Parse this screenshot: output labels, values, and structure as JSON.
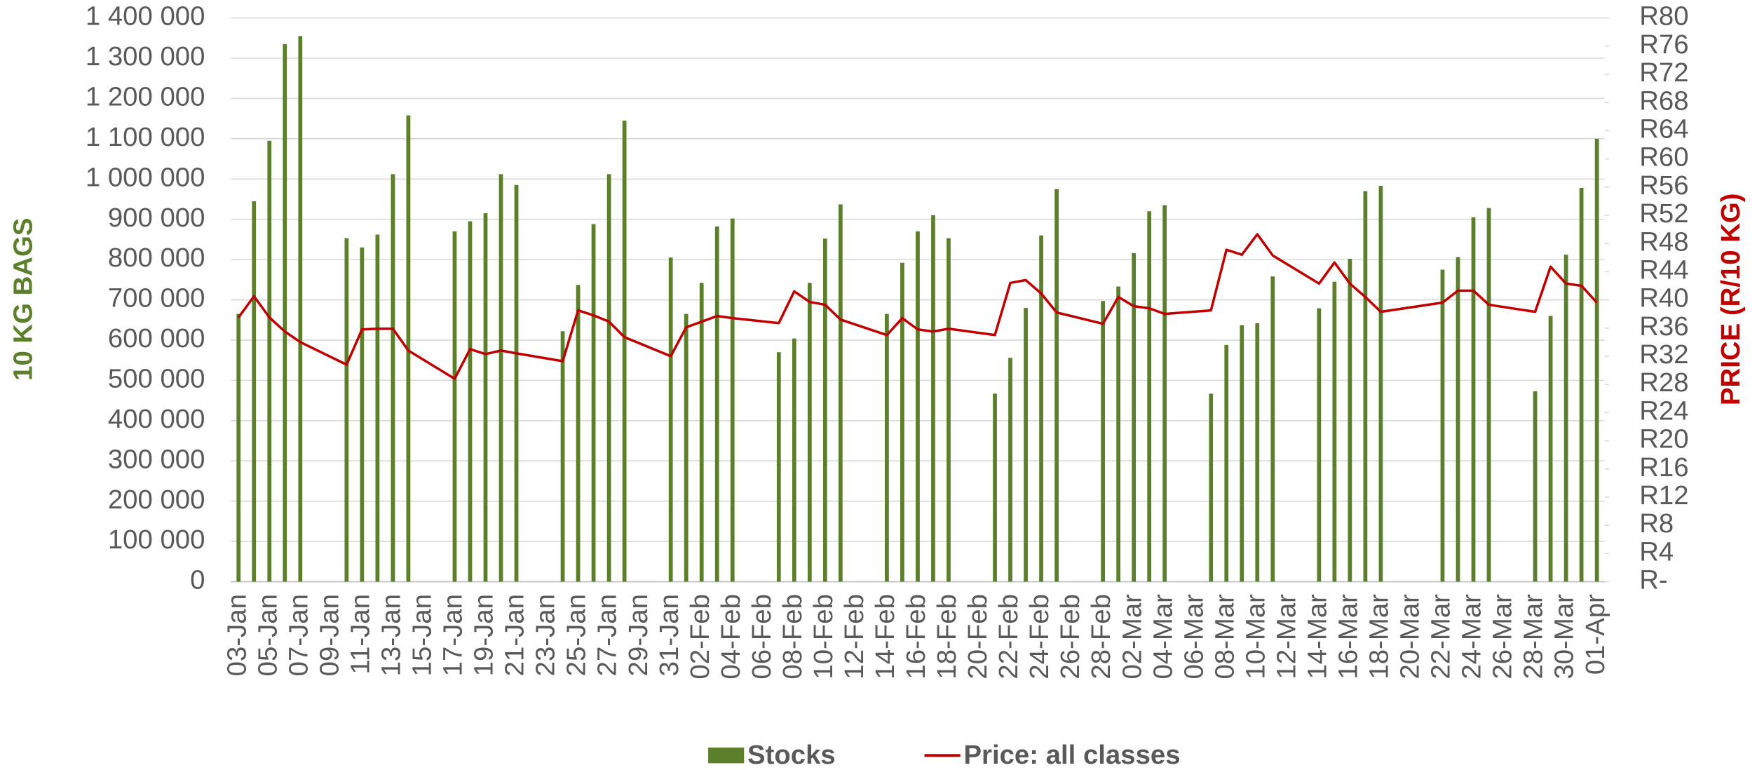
{
  "chart_data": {
    "type": "bar-line",
    "categories": [
      "03-Jan",
      null,
      "05-Jan",
      null,
      "07-Jan",
      null,
      "09-Jan",
      null,
      "11-Jan",
      null,
      "13-Jan",
      null,
      "15-Jan",
      null,
      "17-Jan",
      null,
      "19-Jan",
      null,
      "21-Jan",
      null,
      "23-Jan",
      null,
      "25-Jan",
      null,
      "27-Jan",
      null,
      "29-Jan",
      null,
      "31-Jan",
      null,
      "02-Feb",
      null,
      "04-Feb",
      null,
      "06-Feb",
      null,
      "08-Feb",
      null,
      "10-Feb",
      null,
      "12-Feb",
      null,
      "14-Feb",
      null,
      "16-Feb",
      null,
      "18-Feb",
      null,
      "20-Feb",
      null,
      "22-Feb",
      null,
      "24-Feb",
      null,
      "26-Feb",
      null,
      "28-Feb",
      null,
      "02-Mar",
      null,
      "04-Mar",
      null,
      "06-Mar",
      null,
      "08-Mar",
      null,
      "10-Mar",
      null,
      "12-Mar",
      null,
      "14-Mar",
      null,
      "16-Mar",
      null,
      "18-Mar",
      null,
      "20-Mar",
      null,
      "22-Mar",
      null,
      "24-Mar",
      null,
      "26-Mar",
      null,
      "28-Mar",
      null,
      "30-Mar",
      null,
      "01-Apr"
    ],
    "series": [
      {
        "name": "Stocks",
        "type": "bar",
        "color": "#5b7f2a",
        "values": [
          665000,
          945000,
          1095000,
          1335000,
          1355000,
          null,
          null,
          853000,
          830000,
          862000,
          1012000,
          1158000,
          null,
          null,
          870000,
          895000,
          915000,
          1012000,
          985000,
          null,
          null,
          622000,
          737000,
          888000,
          1012000,
          1145000,
          null,
          null,
          805000,
          665000,
          742000,
          882000,
          902000,
          null,
          null,
          570000,
          604000,
          742000,
          852000,
          937000,
          null,
          null,
          665000,
          792000,
          870000,
          910000,
          853000,
          null,
          null,
          467000,
          556000,
          680000,
          860000,
          975000,
          null,
          null,
          697000,
          733000,
          816000,
          920000,
          935000,
          null,
          null,
          467000,
          588000,
          637000,
          642000,
          758000,
          null,
          null,
          679000,
          745000,
          802000,
          970000,
          983000,
          null,
          null,
          null,
          775000,
          806000,
          905000,
          928000,
          null,
          null,
          473000,
          660000,
          812000,
          978000,
          1100000
        ]
      },
      {
        "name": "Price: all classes",
        "type": "line",
        "axis": "y2",
        "color": "#c00000",
        "values": [
          37.5,
          40.5,
          37.5,
          35.5,
          34,
          null,
          null,
          30.8,
          35.8,
          35.9,
          35.9,
          32.8,
          null,
          null,
          28.8,
          33,
          32.3,
          32.8,
          32.4,
          null,
          null,
          31.3,
          38.5,
          37.8,
          36.9,
          34.7,
          null,
          null,
          32,
          36.1,
          36.9,
          37.7,
          37.4,
          null,
          null,
          36.7,
          41.2,
          39.7,
          39.3,
          37.2,
          null,
          null,
          35,
          37.4,
          35.8,
          35.5,
          35.9,
          null,
          null,
          35,
          42.4,
          42.8,
          40.9,
          38.2,
          null,
          null,
          36.6,
          40.4,
          39.1,
          38.8,
          38,
          null,
          null,
          38.5,
          47.1,
          46.4,
          49.3,
          46.3,
          null,
          null,
          42.3,
          45.3,
          42.3,
          40.4,
          38.3,
          null,
          null,
          null,
          39.6,
          41.3,
          41.3,
          39.3,
          null,
          null,
          38.3,
          44.7,
          42.3,
          42,
          39.6
        ]
      }
    ],
    "y_label": "10 KG BAGS",
    "y2_label": "PRICE (R/10 KG)",
    "ylim": [
      0,
      1400000
    ],
    "yticks": [
      0,
      {
        "value": 100000,
        "label": "100 000"
      },
      {
        "value": 200000,
        "label": "200 000"
      },
      {
        "value": 300000,
        "label": "300 000"
      },
      {
        "value": 400000,
        "label": "400 000"
      },
      {
        "value": 500000,
        "label": "500 000"
      },
      {
        "value": 600000,
        "label": "600 000"
      },
      {
        "value": 700000,
        "label": "700 000"
      },
      {
        "value": 800000,
        "label": "800 000"
      },
      {
        "value": 900000,
        "label": "900 000"
      },
      {
        "value": 1000000,
        "label": "1 000 000"
      },
      {
        "value": 1100000,
        "label": "1 100 000"
      },
      {
        "value": 1200000,
        "label": "1 200 000"
      },
      {
        "value": 1300000,
        "label": "1 300 000"
      },
      {
        "value": 1400000,
        "label": "1 400 000"
      }
    ],
    "y2lim": [
      0,
      80
    ],
    "y2ticks": [
      {
        "value": 0,
        "label": "R-"
      },
      {
        "value": 4,
        "label": "R4"
      },
      {
        "value": 8,
        "label": "R8"
      },
      {
        "value": 12,
        "label": "R12"
      },
      {
        "value": 16,
        "label": "R16"
      },
      {
        "value": 20,
        "label": "R20"
      },
      {
        "value": 24,
        "label": "R24"
      },
      {
        "value": 28,
        "label": "R28"
      },
      {
        "value": 32,
        "label": "R32"
      },
      {
        "value": 36,
        "label": "R36"
      },
      {
        "value": 40,
        "label": "R40"
      },
      {
        "value": 44,
        "label": "R44"
      },
      {
        "value": 48,
        "label": "R48"
      },
      {
        "value": 52,
        "label": "R52"
      },
      {
        "value": 56,
        "label": "R56"
      },
      {
        "value": 60,
        "label": "R60"
      },
      {
        "value": 64,
        "label": "R64"
      },
      {
        "value": 68,
        "label": "R68"
      },
      {
        "value": 72,
        "label": "R72"
      },
      {
        "value": 76,
        "label": "R76"
      },
      {
        "value": 80,
        "label": "R80"
      }
    ],
    "grid": true,
    "legend": "bottom"
  }
}
